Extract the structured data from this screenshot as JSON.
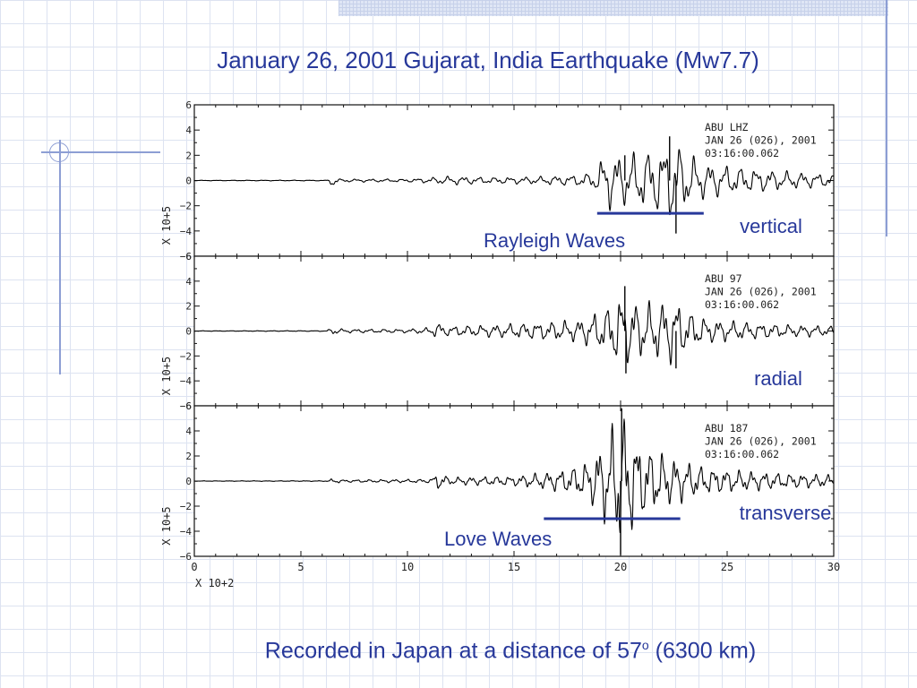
{
  "slide": {
    "title": "January 26, 2001 Gujarat, India Earthquake (Mw7.7)",
    "caption_main": "Recorded in Japan at a distance of 57",
    "caption_degree": "o",
    "caption_tail": " (6300 km)"
  },
  "annotations": {
    "rayleigh": "Rayleigh Waves",
    "love": "Love Waves"
  },
  "colors": {
    "text": "#27389a",
    "annotation_bar": "#27389a",
    "trace": "#000000",
    "decoration": "#8d9ed4"
  },
  "chart_data": {
    "type": "line",
    "x_axis": {
      "range": [
        0,
        30
      ],
      "ticks": [
        0,
        5,
        10,
        15,
        20,
        25,
        30
      ],
      "multiplier_label": "X 10+2"
    },
    "y_axis": {
      "range": [
        -6,
        6
      ],
      "ticks": [
        -6,
        -4,
        -2,
        0,
        2,
        4,
        6
      ],
      "multiplier_label": "X 10+5"
    },
    "panels": [
      {
        "component_label": "vertical",
        "header": [
          "ABU   LHZ",
          "JAN  26  (026),  2001",
          "03:16:00.062"
        ],
        "envelope": [
          [
            0,
            0.02
          ],
          [
            6.3,
            0.03
          ],
          [
            6.5,
            0.7
          ],
          [
            6.8,
            0.12
          ],
          [
            10,
            0.12
          ],
          [
            11,
            0.22
          ],
          [
            12,
            0.35
          ],
          [
            14,
            0.25
          ],
          [
            16,
            0.3
          ],
          [
            18,
            0.45
          ],
          [
            18.8,
            0.7
          ],
          [
            19.3,
            2.4
          ],
          [
            20,
            2.0
          ],
          [
            21,
            2.3
          ],
          [
            22,
            2.8
          ],
          [
            22.5,
            3.4
          ],
          [
            23,
            2.3
          ],
          [
            24,
            1.4
          ],
          [
            26,
            1.0
          ],
          [
            28,
            0.7
          ],
          [
            30,
            0.5
          ]
        ],
        "spikes": [
          [
            22.6,
            -4.2
          ],
          [
            22.3,
            3.5
          ],
          [
            20.2,
            2.0
          ]
        ],
        "bar": {
          "x_range": [
            18.9,
            23.9
          ],
          "y": -2.6
        }
      },
      {
        "component_label": "radial",
        "header": [
          "ABU    97",
          "JAN  26  (026),  2001",
          "03:16:00.062"
        ],
        "envelope": [
          [
            0,
            0.02
          ],
          [
            6.2,
            0.03
          ],
          [
            6.5,
            0.3
          ],
          [
            7,
            0.15
          ],
          [
            10,
            0.15
          ],
          [
            11.2,
            0.3
          ],
          [
            11.4,
            0.8
          ],
          [
            11.7,
            0.4
          ],
          [
            14,
            0.5
          ],
          [
            16,
            0.7
          ],
          [
            18,
            0.9
          ],
          [
            19.3,
            1.8
          ],
          [
            20,
            3.0
          ],
          [
            21,
            2.2
          ],
          [
            22,
            2.4
          ],
          [
            22.5,
            2.8
          ],
          [
            23,
            1.8
          ],
          [
            24,
            1.0
          ],
          [
            26,
            0.7
          ],
          [
            28,
            0.5
          ],
          [
            30,
            0.4
          ]
        ],
        "spikes": [
          [
            20.2,
            3.6
          ],
          [
            20.25,
            -3.4
          ],
          [
            22.6,
            -3.0
          ]
        ],
        "bar": null
      },
      {
        "component_label": "transverse",
        "header": [
          "ABU    187",
          "JAN  26  (026),  2001",
          "03:16:00.062"
        ],
        "envelope": [
          [
            0,
            0.02
          ],
          [
            6.2,
            0.03
          ],
          [
            6.5,
            0.2
          ],
          [
            7,
            0.1
          ],
          [
            11,
            0.15
          ],
          [
            11.2,
            0.35
          ],
          [
            11.4,
            0.7
          ],
          [
            12,
            0.3
          ],
          [
            15,
            0.4
          ],
          [
            16.5,
            0.7
          ],
          [
            17.5,
            1.0
          ],
          [
            18.5,
            1.6
          ],
          [
            19.5,
            4.0
          ],
          [
            20,
            5.8
          ],
          [
            20.5,
            4.2
          ],
          [
            21,
            3.0
          ],
          [
            22,
            2.2
          ],
          [
            23,
            1.6
          ],
          [
            24,
            1.1
          ],
          [
            26,
            0.8
          ],
          [
            28,
            0.6
          ],
          [
            30,
            0.5
          ]
        ],
        "spikes": [
          [
            20.05,
            5.8
          ],
          [
            20.0,
            -5.9
          ]
        ],
        "bar": {
          "x_range": [
            16.4,
            22.8
          ],
          "y": -3.0
        }
      }
    ]
  }
}
